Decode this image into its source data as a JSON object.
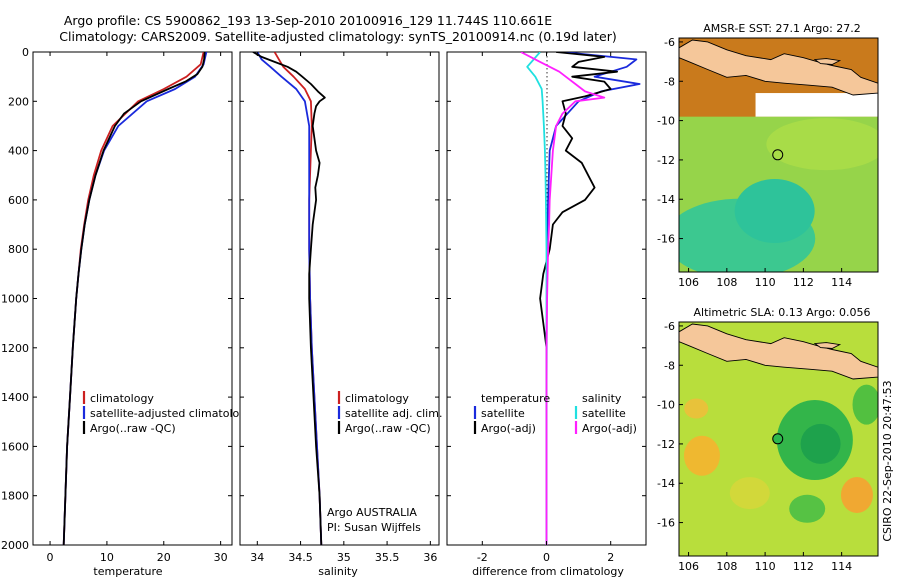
{
  "figure": {
    "title_line1": "Argo profile: CS 5900862_193 13-Sep-2010 20100916_129 11.744S 110.661E",
    "title_line2": "Climatology: CARS2009. Satellite-adjusted climatology: synTS_20100914.nc (0.19d later)",
    "footer": "CSIRO 22-Sep-2010 20:47:53"
  },
  "chart_data": [
    {
      "type": "line",
      "title": "",
      "xlabel": "temperature",
      "ylabel": "",
      "xlim": [
        -3,
        32
      ],
      "ylim": [
        2000,
        0
      ],
      "xticks": [
        0,
        10,
        20,
        30
      ],
      "yticks": [
        0,
        200,
        400,
        600,
        800,
        1000,
        1200,
        1400,
        1600,
        1800,
        2000
      ],
      "legend": [
        "climatology",
        "satellite-adjusted climatology",
        "Argo(..raw -QC)"
      ],
      "colors": [
        "#cc2020",
        "#1a2adc",
        "#000000"
      ],
      "series": [
        {
          "name": "climatology",
          "depth": [
            0,
            50,
            100,
            150,
            200,
            300,
            400,
            500,
            600,
            700,
            800,
            900,
            1000,
            1200,
            1400,
            1600,
            1800,
            2000
          ],
          "values": [
            27.0,
            26.5,
            24.0,
            20.0,
            15.5,
            11.0,
            9.0,
            7.7,
            6.7,
            6.0,
            5.4,
            5.0,
            4.6,
            4.0,
            3.5,
            3.0,
            2.7,
            2.4
          ]
        },
        {
          "name": "satellite-adjusted climatology",
          "depth": [
            0,
            50,
            100,
            150,
            200,
            300,
            400,
            500,
            600,
            700,
            800,
            900,
            1000,
            1200,
            1400,
            1600,
            1800,
            2000
          ],
          "values": [
            27.5,
            27.0,
            25.5,
            22.0,
            17.0,
            12.0,
            9.5,
            8.0,
            6.9,
            6.1,
            5.5,
            5.0,
            4.6,
            4.0,
            3.5,
            3.0,
            2.7,
            2.4
          ]
        },
        {
          "name": "Argo(..raw -QC)",
          "depth": [
            0,
            30,
            60,
            90,
            120,
            150,
            200,
            250,
            300,
            400,
            500,
            600,
            700,
            800,
            900,
            1000,
            1200,
            1400,
            1600,
            1800,
            2000
          ],
          "values": [
            27.2,
            27.1,
            26.8,
            25.9,
            23.8,
            20.8,
            16.0,
            13.0,
            11.4,
            9.4,
            8.0,
            6.9,
            6.1,
            5.5,
            5.0,
            4.6,
            4.0,
            3.5,
            3.0,
            2.7,
            2.4
          ]
        }
      ]
    },
    {
      "type": "line",
      "title": "",
      "xlabel": "salinity",
      "ylabel": "",
      "xlim": [
        33.8,
        36.1
      ],
      "ylim": [
        2000,
        0
      ],
      "xticks": [
        34,
        34.5,
        35,
        35.5,
        36
      ],
      "legend": [
        "climatology",
        "satellite adj. clim.",
        "Argo(..raw -QC)"
      ],
      "colors": [
        "#cc2020",
        "#1a2adc",
        "#000000"
      ],
      "annotation": [
        "Argo AUSTRALIA",
        "PI: Susan Wijffels"
      ],
      "series": [
        {
          "name": "climatology",
          "depth": [
            0,
            30,
            60,
            100,
            150,
            200,
            300,
            400,
            600,
            800,
            1000,
            1200,
            1400,
            1600,
            1800,
            2000
          ],
          "values": [
            34.2,
            34.25,
            34.3,
            34.42,
            34.55,
            34.62,
            34.63,
            34.62,
            34.6,
            34.6,
            34.61,
            34.63,
            34.66,
            34.69,
            34.72,
            34.74
          ]
        },
        {
          "name": "satellite adj. clim.",
          "depth": [
            0,
            30,
            60,
            100,
            150,
            200,
            300,
            400,
            600,
            800,
            1000,
            1200,
            1400,
            1600,
            1800,
            2000
          ],
          "values": [
            34.0,
            34.05,
            34.15,
            34.28,
            34.45,
            34.55,
            34.6,
            34.6,
            34.6,
            34.6,
            34.61,
            34.63,
            34.66,
            34.69,
            34.72,
            34.74
          ]
        },
        {
          "name": "Argo(..raw -QC)",
          "depth": [
            0,
            20,
            40,
            60,
            80,
            100,
            130,
            160,
            185,
            200,
            220,
            250,
            300,
            350,
            400,
            450,
            500,
            550,
            600,
            650,
            700,
            800,
            900,
            1000,
            1200,
            1400,
            1600,
            1800,
            2000
          ],
          "values": [
            33.95,
            34.05,
            34.2,
            34.35,
            34.45,
            34.52,
            34.62,
            34.7,
            34.78,
            34.72,
            34.68,
            34.66,
            34.64,
            34.66,
            34.68,
            34.72,
            34.7,
            34.67,
            34.68,
            34.66,
            34.64,
            34.62,
            34.6,
            34.6,
            34.62,
            34.65,
            34.68,
            34.72,
            34.74
          ]
        }
      ]
    },
    {
      "type": "line",
      "title": "",
      "xlabel": "difference from climatology",
      "ylabel": "",
      "xlim": [
        -3.1,
        3.1
      ],
      "ylim": [
        2000,
        0
      ],
      "xticks": [
        -2,
        0,
        2
      ],
      "legend_temperature": [
        "temperature",
        "satellite",
        "Argo(-adj)"
      ],
      "legend_salinity": [
        "salinity",
        "satellite",
        "Argo(-adj)"
      ],
      "colors": [
        "#1a2adc",
        "#000000",
        "#20e0e0",
        "#ff20ff"
      ],
      "series": [
        {
          "name": "temperature satellite",
          "depth": [
            0,
            30,
            60,
            100,
            130,
            160,
            200,
            300,
            400,
            600,
            800,
            1000,
            1500,
            2000
          ],
          "values": [
            0.5,
            2.8,
            2.5,
            1.5,
            2.9,
            1.7,
            1.0,
            0.3,
            0.1,
            0.05,
            0.02,
            0.01,
            0.0,
            0.0
          ]
        },
        {
          "name": "temperature Argo(-adj)",
          "depth": [
            0,
            20,
            40,
            60,
            80,
            100,
            120,
            150,
            180,
            200,
            250,
            300,
            350,
            400,
            450,
            500,
            550,
            600,
            650,
            700,
            800,
            900,
            1000,
            1200,
            1500,
            2000
          ],
          "values": [
            0.3,
            1.8,
            1.0,
            0.8,
            2.2,
            0.8,
            1.8,
            2.0,
            1.2,
            0.5,
            0.6,
            0.5,
            0.8,
            0.6,
            1.1,
            1.3,
            1.5,
            1.2,
            0.5,
            0.2,
            0.1,
            -0.1,
            -0.2,
            0.0,
            0.0,
            0.0
          ]
        },
        {
          "name": "salinity satellite",
          "depth": [
            0,
            30,
            60,
            100,
            150,
            200,
            300,
            400,
            500,
            600,
            800,
            1000,
            1500,
            2000
          ],
          "values": [
            -0.2,
            -0.4,
            -0.6,
            -0.35,
            -0.15,
            -0.12,
            -0.08,
            -0.05,
            -0.03,
            -0.02,
            0.0,
            0.0,
            0.0,
            0.0
          ]
        },
        {
          "name": "salinity Argo(-adj)",
          "depth": [
            0,
            20,
            40,
            60,
            80,
            100,
            130,
            160,
            185,
            200,
            250,
            300,
            400,
            500,
            600,
            700,
            800,
            1000,
            1200,
            1500,
            2000
          ],
          "values": [
            -0.8,
            -0.5,
            -0.2,
            0.1,
            0.4,
            0.6,
            0.9,
            1.2,
            1.8,
            0.9,
            0.5,
            0.3,
            0.2,
            0.15,
            0.1,
            0.08,
            0.05,
            0.02,
            0.0,
            0.0,
            0.0
          ]
        }
      ]
    },
    {
      "type": "heatmap",
      "title": "AMSR-E SST: 27.1  Argo: 27.2",
      "xlim": [
        105.5,
        115.9
      ],
      "ylim": [
        -17.7,
        -5.8
      ],
      "xticks": [
        106,
        108,
        110,
        112,
        114
      ],
      "yticks": [
        -6,
        -8,
        -10,
        -12,
        -14,
        -16
      ],
      "marker": {
        "lon": 110.66,
        "lat": -11.74
      }
    },
    {
      "type": "heatmap",
      "title": "Altimetric SLA: 0.13  Argo: 0.056",
      "xlim": [
        105.5,
        115.9
      ],
      "ylim": [
        -17.7,
        -5.8
      ],
      "xticks": [
        106,
        108,
        110,
        112,
        114
      ],
      "yticks": [
        -6,
        -8,
        -10,
        -12,
        -14,
        -16
      ],
      "marker": {
        "lon": 110.66,
        "lat": -11.74
      }
    }
  ]
}
